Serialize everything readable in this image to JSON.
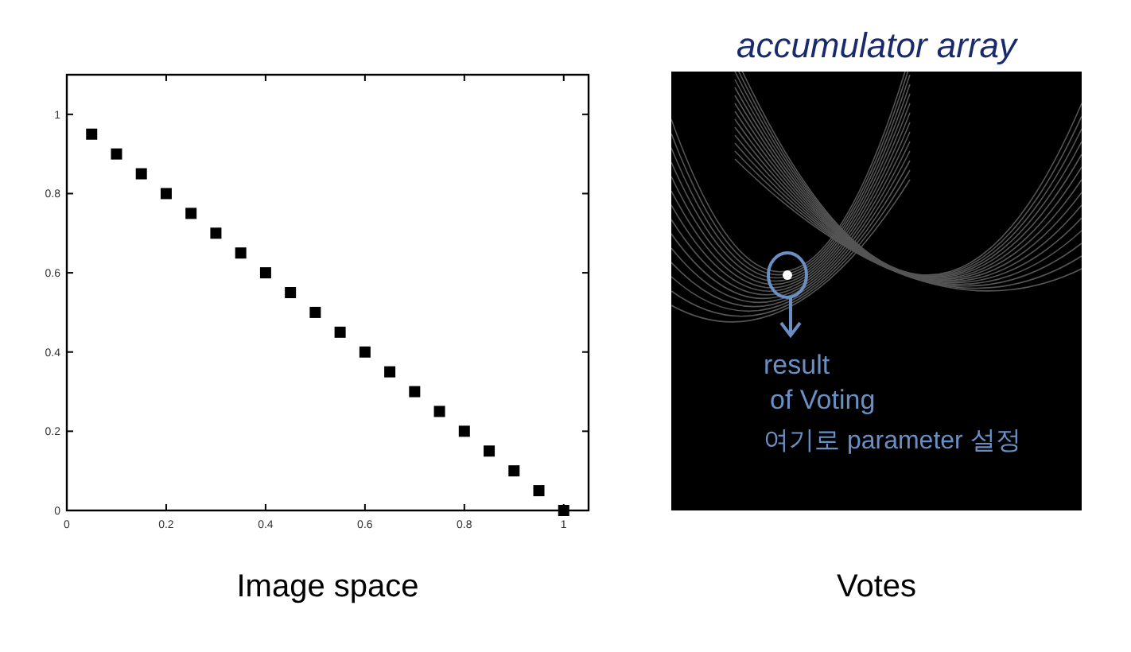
{
  "chart_data": [
    {
      "type": "scatter",
      "title": "Image space",
      "marker": "square",
      "color": "#000000",
      "xlim": [
        0,
        1.05
      ],
      "ylim": [
        0,
        1.1
      ],
      "xticks": [
        0,
        0.2,
        0.4,
        0.6,
        0.8,
        1
      ],
      "yticks": [
        0,
        0.2,
        0.4,
        0.6,
        0.8,
        1
      ],
      "x": [
        0.05,
        0.1,
        0.15,
        0.2,
        0.25,
        0.3,
        0.35,
        0.4,
        0.45,
        0.5,
        0.55,
        0.6,
        0.65,
        0.7,
        0.75,
        0.8,
        0.85,
        0.9,
        0.95,
        1
      ],
      "values": [
        0.95,
        0.9,
        0.85,
        0.8,
        0.75,
        0.7,
        0.65,
        0.6,
        0.55,
        0.5,
        0.45,
        0.4,
        0.35,
        0.3,
        0.25,
        0.2,
        0.15,
        0.1,
        0.05,
        0
      ]
    },
    {
      "type": "other",
      "title": "Votes",
      "annotations": [
        "accumulator array",
        "result\nof Voting",
        "여기로 parameter 설정"
      ]
    }
  ]
}
